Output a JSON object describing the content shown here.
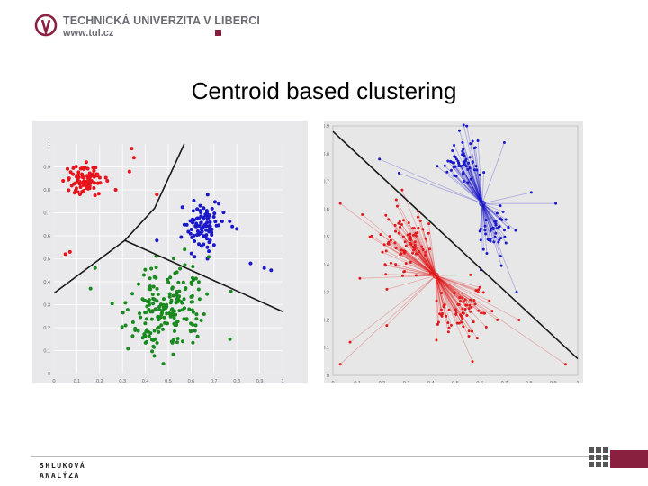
{
  "header": {
    "university": "TECHNICKÁ UNIVERZITA V LIBERCI",
    "url": "www.tul.cz",
    "brand_color": "#8a2040"
  },
  "slide": {
    "title": "Centroid based clustering"
  },
  "footer": {
    "line1": "SHLUKOVÁ",
    "line2": "ANALÝZA",
    "grid_icon": "tile-grid-icon"
  },
  "chart_data": [
    {
      "type": "scatter",
      "xlim": [
        0,
        1
      ],
      "ylim": [
        0,
        1
      ],
      "x_ticks": [
        "0",
        "0.1",
        "0.2",
        "0.3",
        "0.4",
        "0.5",
        "0.6",
        "0.7",
        "0.8",
        "0.9",
        "1"
      ],
      "y_ticks": [
        "0",
        "0.1",
        "0.2",
        "0.3",
        "0.4",
        "0.5",
        "0.6",
        "0.7",
        "0.8",
        "0.9",
        "1"
      ],
      "grid": true,
      "series": [
        {
          "color": "#e8141c",
          "cluster": {
            "cx": 0.14,
            "cy": 0.84,
            "sx": 0.035,
            "sy": 0.035,
            "n": 90
          },
          "outliers": [
            [
              0.34,
              0.98
            ],
            [
              0.35,
              0.94
            ],
            [
              0.33,
              0.88
            ],
            [
              0.07,
              0.53
            ],
            [
              0.05,
              0.52
            ],
            [
              0.45,
              0.78
            ],
            [
              0.27,
              0.8
            ]
          ]
        },
        {
          "color": "#1a18c8",
          "cluster": {
            "cx": 0.65,
            "cy": 0.64,
            "sx": 0.04,
            "sy": 0.05,
            "n": 100
          },
          "outliers": [
            [
              0.78,
              0.64
            ],
            [
              0.8,
              0.63
            ],
            [
              0.92,
              0.46
            ],
            [
              0.86,
              0.48
            ],
            [
              0.95,
              0.45
            ],
            [
              0.45,
              0.58
            ]
          ]
        },
        {
          "color": "#1a8a20",
          "cluster": {
            "cx": 0.49,
            "cy": 0.28,
            "sx": 0.08,
            "sy": 0.09,
            "n": 200
          },
          "outliers": [
            [
              0.18,
              0.46
            ],
            [
              0.16,
              0.37
            ],
            [
              0.77,
              0.15
            ]
          ]
        }
      ],
      "boundaries": [
        [
          [
            0.57,
            1.0
          ],
          [
            0.44,
            0.72
          ],
          [
            0.31,
            0.58
          ],
          [
            0.0,
            0.35
          ]
        ],
        [
          [
            0.31,
            0.58
          ],
          [
            0.8,
            0.36
          ],
          [
            1.0,
            0.27
          ]
        ]
      ]
    },
    {
      "type": "scatter",
      "xlim": [
        0,
        1
      ],
      "ylim": [
        0,
        0.9
      ],
      "x_ticks": [
        "0",
        "0.1",
        "0.2",
        "0.3",
        "0.4",
        "0.5",
        "0.6",
        "0.7",
        "0.8",
        "0.9",
        "1"
      ],
      "y_ticks": [
        "0",
        "0.1",
        "0.2",
        "0.3",
        "0.4",
        "0.5",
        "0.6",
        "0.7",
        "0.8",
        "0.9"
      ],
      "grid": false,
      "series": [
        {
          "color": "#1a18c8",
          "centroid": [
            0.61,
            0.62
          ],
          "clusters": [
            {
              "cx": 0.54,
              "cy": 0.77,
              "sx": 0.05,
              "sy": 0.04,
              "n": 60
            },
            {
              "cx": 0.66,
              "cy": 0.52,
              "sx": 0.035,
              "sy": 0.05,
              "n": 45
            }
          ],
          "outliers": [
            [
              0.19,
              0.78
            ],
            [
              0.27,
              0.73
            ],
            [
              0.7,
              0.84
            ],
            [
              0.91,
              0.62
            ],
            [
              0.81,
              0.66
            ],
            [
              0.75,
              0.3
            ]
          ]
        },
        {
          "color": "#e01a1c",
          "centroid": [
            0.42,
            0.36
          ],
          "clusters": [
            {
              "cx": 0.3,
              "cy": 0.47,
              "sx": 0.055,
              "sy": 0.065,
              "n": 85
            },
            {
              "cx": 0.53,
              "cy": 0.23,
              "sx": 0.055,
              "sy": 0.05,
              "n": 70
            }
          ],
          "outliers": [
            [
              0.03,
              0.62
            ],
            [
              0.12,
              0.58
            ],
            [
              0.03,
              0.04
            ],
            [
              0.07,
              0.12
            ],
            [
              0.22,
              0.18
            ],
            [
              0.57,
              0.05
            ],
            [
              0.95,
              0.04
            ],
            [
              0.76,
              0.2
            ],
            [
              0.11,
              0.35
            ]
          ]
        }
      ],
      "boundaries": [
        [
          [
            0.0,
            0.88
          ],
          [
            1.0,
            0.06
          ]
        ]
      ]
    }
  ]
}
